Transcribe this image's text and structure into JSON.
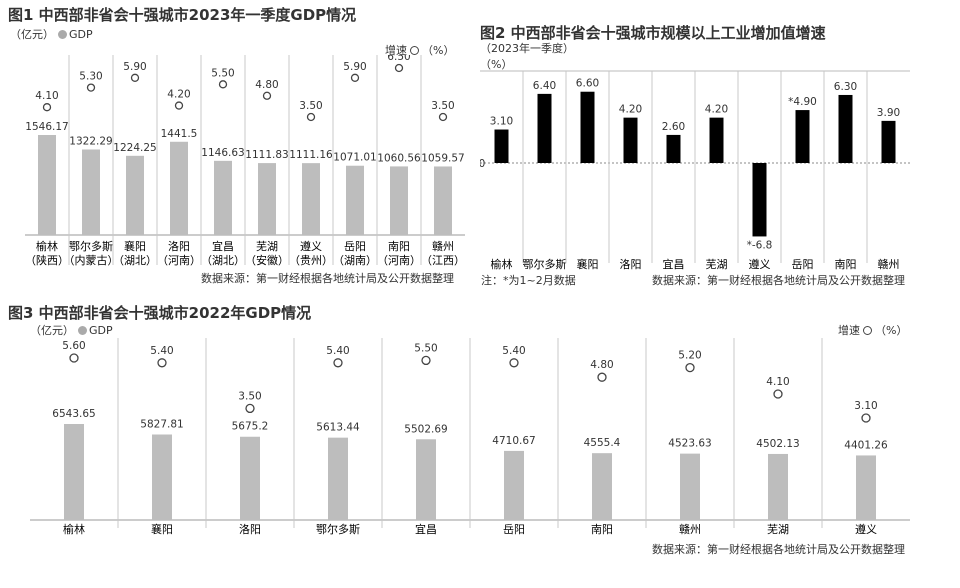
{
  "chart_data": [
    {
      "type": "bar",
      "title": "图1 中西部非省会十强城市2023年一季度GDP情况",
      "legend": {
        "unit_left": "（亿元）",
        "gdp_label": "GDP",
        "growth_label": "增速",
        "unit_right": "（%）"
      },
      "categories": [
        [
          "榆林",
          "（陕西）"
        ],
        [
          "鄂尔多斯",
          "（内蒙古）"
        ],
        [
          "襄阳",
          "（湖北）"
        ],
        [
          "洛阳",
          "（河南）"
        ],
        [
          "宜昌",
          "（湖北）"
        ],
        [
          "芜湖",
          "（安徽）"
        ],
        [
          "遵义",
          "（贵州）"
        ],
        [
          "岳阳",
          "（湖南）"
        ],
        [
          "南阳",
          "（河南）"
        ],
        [
          "赣州",
          "（江西）"
        ]
      ],
      "series": [
        {
          "name": "GDP",
          "values": [
            1546.17,
            1322.29,
            1224.25,
            1441.5,
            1146.63,
            1111.83,
            1111.16,
            1071.01,
            1060.56,
            1059.57
          ],
          "labels": [
            "1546.17",
            "1322.29",
            "1224.25",
            "1441.5",
            "1146.63",
            "1111.83",
            "1111.16",
            "1071.01",
            "1060.56",
            "1059.57"
          ]
        },
        {
          "name": "增速",
          "values": [
            4.1,
            5.3,
            5.9,
            4.2,
            5.5,
            4.8,
            3.5,
            5.9,
            6.5,
            3.5
          ],
          "labels": [
            "4.10",
            "5.30",
            "5.90",
            "4.20",
            "5.50",
            "4.80",
            "3.50",
            "5.90",
            "6.50",
            "3.50"
          ]
        }
      ],
      "source": "数据来源：第一财经根据各地统计局及公开数据整理"
    },
    {
      "type": "bar",
      "title": "图2  中西部非省会十强城市规模以上工业增加值增速",
      "subtitle": "（2023年一季度）",
      "unit": "（%）",
      "zero_label": "0",
      "categories": [
        "榆林",
        "鄂尔多斯",
        "襄阳",
        "洛阳",
        "宜昌",
        "芜湖",
        "遵义",
        "岳阳",
        "南阳",
        "赣州"
      ],
      "values": [
        3.1,
        6.4,
        6.6,
        4.2,
        2.6,
        4.2,
        -6.8,
        4.9,
        6.3,
        3.9
      ],
      "labels": [
        "3.10",
        "6.40",
        "6.60",
        "4.20",
        "2.60",
        "4.20",
        "*-6.8",
        "*4.90",
        "6.30",
        "3.90"
      ],
      "note": "注：*为1~2月数据",
      "source": "数据来源：第一财经根据各地统计局及公开数据整理"
    },
    {
      "type": "bar",
      "title": "图3  中西部非省会十强城市2022年GDP情况",
      "legend": {
        "unit_left": "（亿元）",
        "gdp_label": "GDP",
        "growth_label": "增速",
        "unit_right": "（%）"
      },
      "categories": [
        "榆林",
        "襄阳",
        "洛阳",
        "鄂尔多斯",
        "宜昌",
        "岳阳",
        "南阳",
        "赣州",
        "芜湖",
        "遵义"
      ],
      "series": [
        {
          "name": "GDP",
          "values": [
            6543.65,
            5827.81,
            5675.2,
            5613.44,
            5502.69,
            4710.67,
            4555.4,
            4523.63,
            4502.13,
            4401.26
          ],
          "labels": [
            "6543.65",
            "5827.81",
            "5675.2",
            "5613.44",
            "5502.69",
            "4710.67",
            "4555.4",
            "4523.63",
            "4502.13",
            "4401.26"
          ]
        },
        {
          "name": "增速",
          "values": [
            5.6,
            5.4,
            3.5,
            5.4,
            5.5,
            5.4,
            4.8,
            5.2,
            4.1,
            3.1
          ],
          "labels": [
            "5.60",
            "5.40",
            "3.50",
            "5.40",
            "5.50",
            "5.40",
            "4.80",
            "5.20",
            "4.10",
            "3.10"
          ]
        }
      ],
      "source": "数据来源：第一财经根据各地统计局及公开数据整理"
    }
  ],
  "colors": {
    "gdp_bar": "#bdbdbd",
    "ind_bar": "#000000",
    "divider": "#c8c8c8",
    "text": "#333333"
  }
}
